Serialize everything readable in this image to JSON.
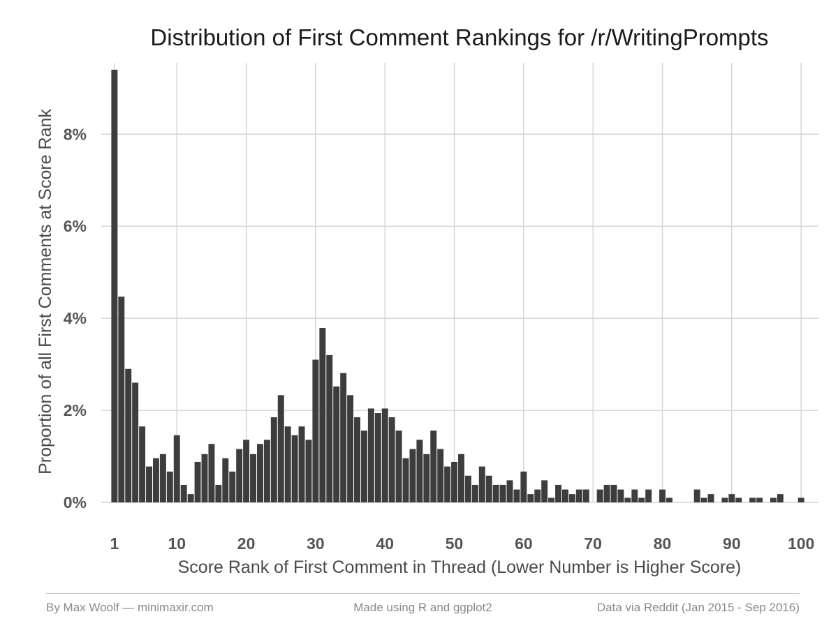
{
  "chart_data": {
    "type": "bar",
    "title": "Distribution of First Comment Rankings for /r/WritingPrompts",
    "xlabel": "Score Rank of First Comment in Thread (Lower Number is Higher Score)",
    "ylabel": "Proportion of all First Comments at Score Rank",
    "x_ticks": [
      1,
      10,
      20,
      30,
      40,
      50,
      60,
      70,
      80,
      90,
      100
    ],
    "x_tick_labels": [
      "1",
      "10",
      "20",
      "30",
      "40",
      "50",
      "60",
      "70",
      "80",
      "90",
      "100"
    ],
    "y_ticks": [
      0,
      2,
      4,
      6,
      8
    ],
    "y_tick_labels": [
      "0%",
      "2%",
      "4%",
      "6%",
      "8%"
    ],
    "xlim": [
      -0.9,
      102.5
    ],
    "ylim": [
      0,
      9.55
    ],
    "y_unit": "percent",
    "grid": true,
    "series": [
      {
        "x": [
          1,
          2,
          3,
          4,
          5,
          6,
          7,
          8,
          9,
          10,
          11,
          12,
          13,
          14,
          15,
          16,
          17,
          18,
          19,
          20,
          21,
          22,
          23,
          24,
          25,
          26,
          27,
          28,
          29,
          30,
          31,
          32,
          33,
          34,
          35,
          36,
          37,
          38,
          39,
          40,
          41,
          42,
          43,
          44,
          45,
          46,
          47,
          48,
          49,
          50,
          51,
          52,
          53,
          54,
          55,
          56,
          57,
          58,
          59,
          60,
          61,
          62,
          63,
          64,
          65,
          66,
          67,
          68,
          69,
          70,
          71,
          72,
          73,
          74,
          75,
          76,
          77,
          78,
          79,
          80,
          81,
          82,
          83,
          84,
          85,
          86,
          87,
          88,
          89,
          90,
          91,
          92,
          93,
          94,
          95,
          96,
          97,
          98,
          99,
          100
        ],
        "values": [
          9.4,
          4.47,
          2.9,
          2.6,
          1.65,
          0.78,
          0.96,
          1.05,
          0.67,
          1.46,
          0.38,
          0.18,
          0.88,
          1.05,
          1.27,
          0.38,
          0.96,
          0.67,
          1.16,
          1.36,
          1.05,
          1.27,
          1.36,
          1.85,
          2.33,
          1.65,
          1.46,
          1.65,
          1.36,
          3.1,
          3.79,
          3.2,
          2.52,
          2.81,
          2.33,
          1.85,
          1.56,
          2.04,
          1.94,
          2.04,
          1.85,
          1.56,
          0.96,
          1.16,
          1.36,
          1.05,
          1.56,
          1.16,
          0.78,
          0.88,
          1.05,
          0.58,
          0.38,
          0.78,
          0.58,
          0.38,
          0.38,
          0.48,
          0.28,
          0.67,
          0.18,
          0.28,
          0.48,
          0.1,
          0.38,
          0.28,
          0.18,
          0.28,
          0.28,
          0.0,
          0.28,
          0.38,
          0.38,
          0.28,
          0.1,
          0.28,
          0.1,
          0.28,
          0.0,
          0.28,
          0.1,
          0.0,
          0.0,
          0.0,
          0.28,
          0.1,
          0.18,
          0.0,
          0.1,
          0.18,
          0.1,
          0.0,
          0.1,
          0.1,
          0.0,
          0.1,
          0.18,
          0.0,
          0.0,
          0.1
        ]
      }
    ]
  },
  "footer": {
    "left": "By Max Woolf — minimaxir.com",
    "center": "Made using R and ggplot2",
    "right": "Data via Reddit (Jan 2015 - Sep 2016)"
  }
}
